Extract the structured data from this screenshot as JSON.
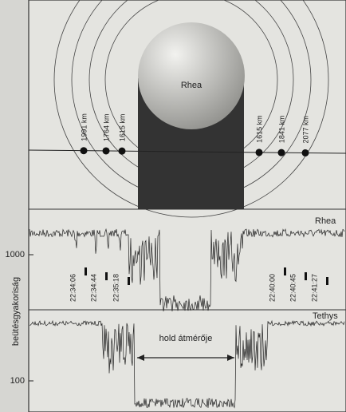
{
  "moon": {
    "label": "Rhea"
  },
  "distances": {
    "left": [
      "1991 km",
      "1764 km",
      "1615 km"
    ],
    "right": [
      "1615 km",
      "1841 km",
      "2077 km"
    ]
  },
  "panels": {
    "upper": {
      "label": "Rhea",
      "times": [
        "22:34:06",
        "22:34:44",
        "22:35:18",
        "22:40:00",
        "22:40:45",
        "22:41:27"
      ],
      "ytick": "1000"
    },
    "lower": {
      "label": "Tethys",
      "annotation": "hold átmérője",
      "ytick": "100"
    }
  },
  "y_axis_label": "beütésgyakoriság"
}
